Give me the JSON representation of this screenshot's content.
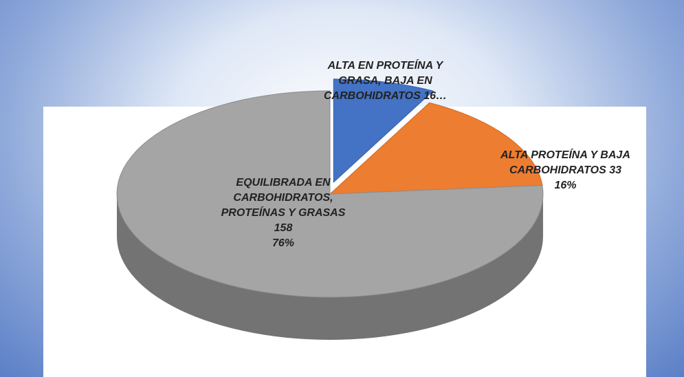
{
  "chart_data": {
    "type": "pie3d",
    "categories": [
      "ALTA  EN PROTEÍNA Y GRASA,  BAJA EN CARBOHIDRATOS",
      "ALTA PROTEÍNA Y BAJA CARBOHIDRATOS",
      "EQUILIBRADA EN CARBOHIDRATOS, PROTEÍNAS Y GRASAS"
    ],
    "values": [
      16,
      33,
      158
    ],
    "value_labels": [
      "16…",
      "33",
      "158"
    ],
    "percent_labels": [
      null,
      "16%",
      "76%"
    ],
    "colors": [
      "#4472c4",
      "#ed7d31",
      "#a5a5a5"
    ],
    "exploded": [
      true,
      false,
      false
    ]
  }
}
